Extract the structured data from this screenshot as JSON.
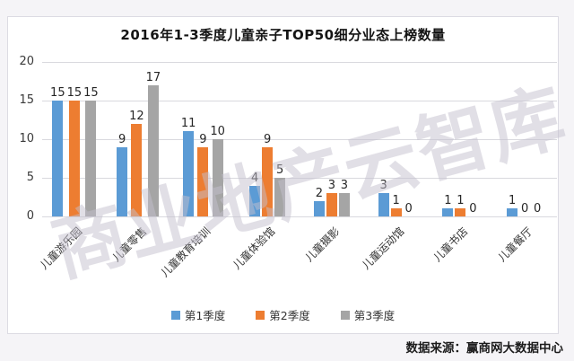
{
  "page": {
    "watermark": "商业地产云智库",
    "source": "数据来源：赢商网大数据中心"
  },
  "chart_data": {
    "type": "bar",
    "title": "2016年1-3季度儿童亲子TOP50细分业态上榜数量",
    "categories": [
      "儿童游乐园",
      "儿童零售",
      "儿童教育培训",
      "儿童体验馆",
      "儿童摄影",
      "儿童运动馆",
      "儿童书店",
      "儿童餐厅"
    ],
    "series": [
      {
        "name": "第1季度",
        "color": "#5B9BD5",
        "values": [
          15,
          9,
          11,
          4,
          2,
          3,
          1,
          1
        ]
      },
      {
        "name": "第2季度",
        "color": "#ED7D31",
        "values": [
          15,
          12,
          9,
          9,
          3,
          1,
          1,
          0
        ]
      },
      {
        "name": "第3季度",
        "color": "#A5A5A5",
        "values": [
          15,
          17,
          10,
          5,
          3,
          0,
          0,
          0
        ]
      }
    ],
    "xlabel": "",
    "ylabel": "",
    "ylim": [
      0,
      20
    ],
    "yticks": [
      0,
      5,
      10,
      15,
      20
    ],
    "grid": true,
    "legend_position": "bottom",
    "data_labels": true,
    "gridline_color": "#d9d9de"
  }
}
